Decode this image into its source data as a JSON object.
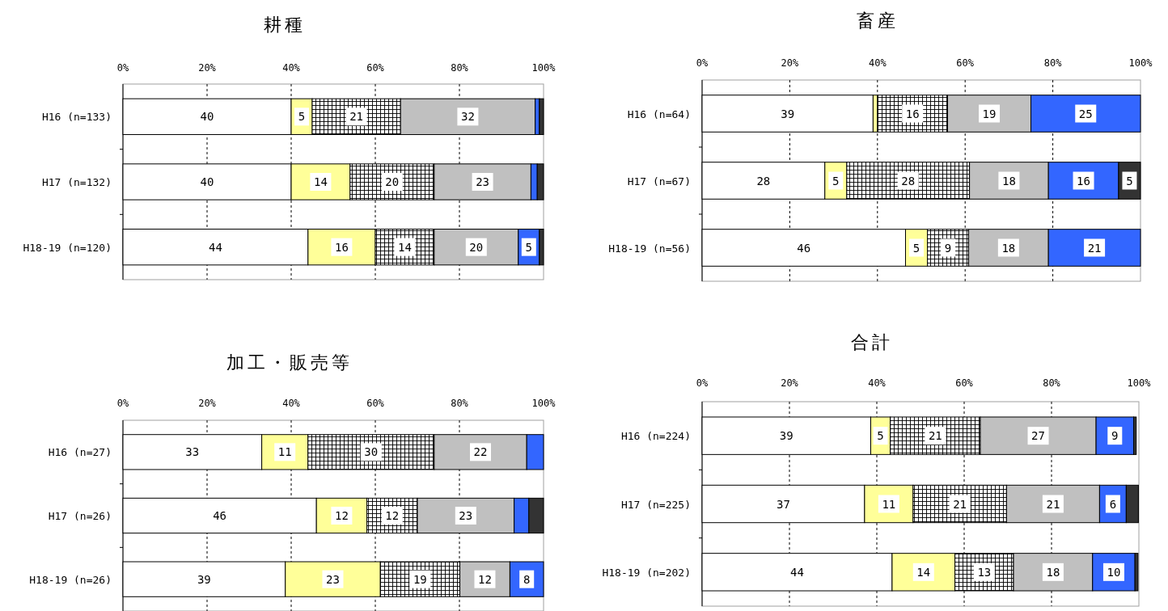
{
  "chart_data": [
    {
      "type": "bar",
      "orientation": "horizontal",
      "stacked": true,
      "title": "耕種",
      "categories": [
        "H16 (n=133)",
        "H17 (n=132)",
        "H18-19 (n=120)"
      ],
      "xlim": [
        0,
        100
      ],
      "xticks": [
        {
          "value": 0,
          "label": "0%"
        },
        {
          "value": 20,
          "label": "20%"
        },
        {
          "value": 40,
          "label": "40%"
        },
        {
          "value": 60,
          "label": "60%"
        },
        {
          "value": 80,
          "label": "80%"
        },
        {
          "value": 100,
          "label": "100%"
        }
      ],
      "grid": "x",
      "series": [
        {
          "color": "#ffffff",
          "values": [
            40,
            40,
            44
          ],
          "value_labels": [
            "40",
            "40",
            "44"
          ]
        },
        {
          "color": "#ffff99",
          "values": [
            5,
            14,
            16
          ],
          "value_labels": [
            "5",
            "14",
            "16"
          ]
        },
        {
          "color": "#000000",
          "values": [
            21,
            20,
            14
          ],
          "value_labels": [
            "21",
            "20",
            "14"
          ]
        },
        {
          "color": "#c0c0c0",
          "values": [
            32,
            23,
            20
          ],
          "value_labels": [
            "32",
            "23",
            "20"
          ]
        },
        {
          "color": "#3366ff",
          "values": [
            1,
            1.5,
            5
          ],
          "value_labels": [
            null,
            null,
            "5"
          ]
        },
        {
          "color": "#333333",
          "values": [
            1,
            1.5,
            1
          ],
          "value_labels": [
            null,
            null,
            null
          ]
        }
      ]
    },
    {
      "type": "bar",
      "orientation": "horizontal",
      "stacked": true,
      "title": "畜産",
      "categories": [
        "H16 (n=64)",
        "H17 (n=67)",
        "H18-19 (n=56)"
      ],
      "xlim": [
        0,
        100
      ],
      "xticks": [
        {
          "value": 0,
          "label": "0%"
        },
        {
          "value": 20,
          "label": "20%"
        },
        {
          "value": 40,
          "label": "40%"
        },
        {
          "value": 60,
          "label": "60%"
        },
        {
          "value": 80,
          "label": "80%"
        },
        {
          "value": 100,
          "label": "100%"
        }
      ],
      "grid": "x",
      "series": [
        {
          "color": "#ffffff",
          "values": [
            39,
            28,
            46.4
          ],
          "value_labels": [
            "39",
            "28",
            "46"
          ]
        },
        {
          "color": "#ffff99",
          "values": [
            1,
            5,
            5
          ],
          "value_labels": [
            null,
            "5",
            "5"
          ]
        },
        {
          "color": "#000000",
          "values": [
            16,
            28,
            9.4
          ],
          "value_labels": [
            "16",
            "28",
            "9"
          ]
        },
        {
          "color": "#c0c0c0",
          "values": [
            19,
            18,
            18.2
          ],
          "value_labels": [
            "19",
            "18",
            "18"
          ]
        },
        {
          "color": "#3366ff",
          "values": [
            25,
            16,
            21
          ],
          "value_labels": [
            "25",
            "16",
            "21"
          ]
        },
        {
          "color": "#333333",
          "values": [
            null,
            5,
            null
          ],
          "value_labels": [
            null,
            "5",
            null
          ]
        }
      ]
    },
    {
      "type": "bar",
      "orientation": "horizontal",
      "stacked": true,
      "title": "加工・販売等",
      "categories": [
        "H16 (n=27)",
        "H17 (n=26)",
        "H18-19 (n=26)"
      ],
      "xlim": [
        0,
        100
      ],
      "xticks": [
        {
          "value": 0,
          "label": "0%"
        },
        {
          "value": 20,
          "label": "20%"
        },
        {
          "value": 40,
          "label": "40%"
        },
        {
          "value": 60,
          "label": "60%"
        },
        {
          "value": 80,
          "label": "80%"
        },
        {
          "value": 100,
          "label": "100%"
        }
      ],
      "grid": "x",
      "series": [
        {
          "color": "#ffffff",
          "values": [
            33,
            46,
            38.6
          ],
          "value_labels": [
            "33",
            "46",
            "39"
          ]
        },
        {
          "color": "#ffff99",
          "values": [
            11,
            12,
            22.6
          ],
          "value_labels": [
            "11",
            "12",
            "23"
          ]
        },
        {
          "color": "#000000",
          "values": [
            30,
            12,
            18.9
          ],
          "value_labels": [
            "30",
            "12",
            "19"
          ]
        },
        {
          "color": "#c0c0c0",
          "values": [
            22,
            23,
            11.9
          ],
          "value_labels": [
            "22",
            "23",
            "12"
          ]
        },
        {
          "color": "#3366ff",
          "values": [
            4,
            3.5,
            8
          ],
          "value_labels": [
            null,
            null,
            "8"
          ]
        },
        {
          "color": "#333333",
          "values": [
            null,
            3.5,
            null
          ],
          "value_labels": [
            null,
            null,
            null
          ]
        }
      ]
    },
    {
      "type": "bar",
      "orientation": "horizontal",
      "stacked": true,
      "title": "合計",
      "categories": [
        "H16 (n=224)",
        "H17 (n=225)",
        "H18-19 (n=202)"
      ],
      "xlim": [
        0,
        100
      ],
      "xticks": [
        {
          "value": 0,
          "label": "0%"
        },
        {
          "value": 20,
          "label": "20%"
        },
        {
          "value": 40,
          "label": "40%"
        },
        {
          "value": 60,
          "label": "60%"
        },
        {
          "value": 80,
          "label": "80%"
        },
        {
          "value": 100,
          "label": "100%"
        }
      ],
      "grid": "x",
      "series": [
        {
          "color": "#ffffff",
          "values": [
            38.6,
            37.2,
            43.5
          ],
          "value_labels": [
            "39",
            "37",
            "44"
          ]
        },
        {
          "color": "#ffff99",
          "values": [
            4.5,
            11.1,
            14.4
          ],
          "value_labels": [
            "5",
            "11",
            "14"
          ]
        },
        {
          "color": "#000000",
          "values": [
            20.6,
            21.4,
            13.4
          ],
          "value_labels": [
            "21",
            "21",
            "13"
          ]
        },
        {
          "color": "#c0c0c0",
          "values": [
            26.5,
            21.3,
            18.1
          ],
          "value_labels": [
            "27",
            "21",
            "18"
          ]
        },
        {
          "color": "#3366ff",
          "values": [
            8.6,
            6.1,
            9.7
          ],
          "value_labels": [
            "9",
            "6",
            "10"
          ]
        },
        {
          "color": "#333333",
          "values": [
            0.6,
            2.8,
            0.7
          ],
          "value_labels": [
            null,
            null,
            null
          ]
        }
      ]
    }
  ]
}
